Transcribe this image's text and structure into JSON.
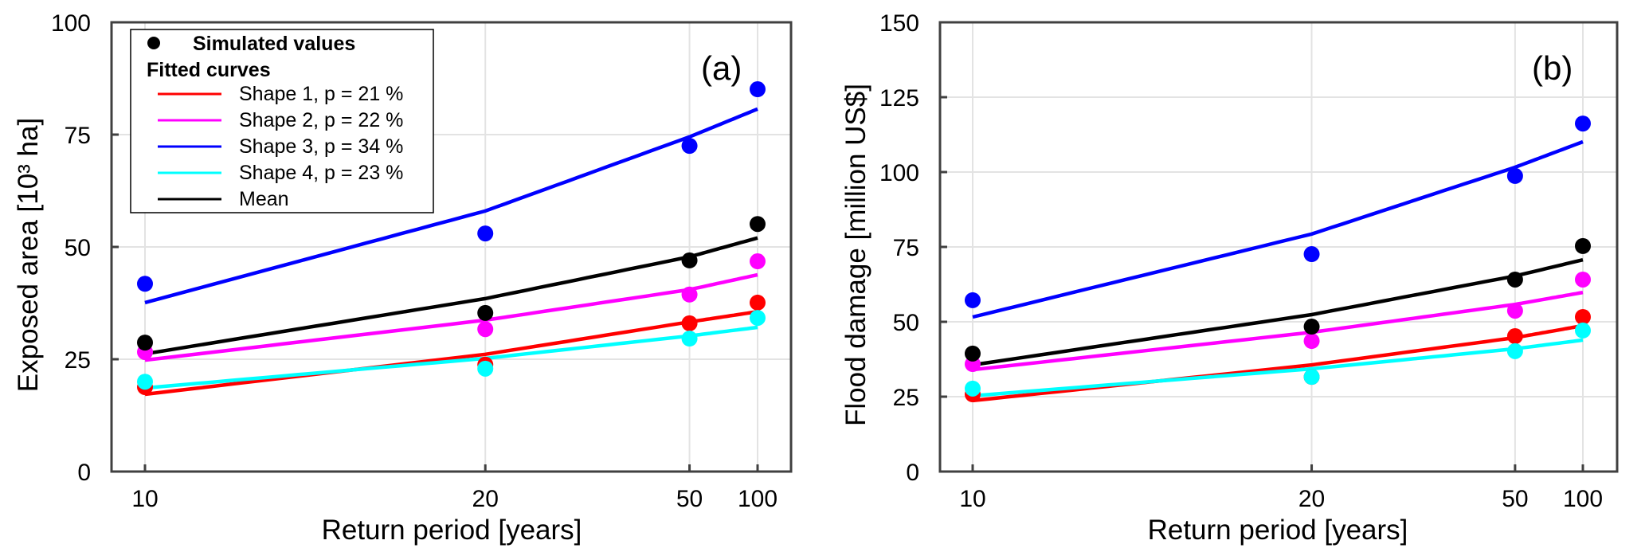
{
  "chart_data": [
    {
      "type": "line",
      "panel_label": "(a)",
      "xlabel": "Return period [years]",
      "ylabel": "Exposed  area [10³ ha]",
      "x_scale": "exceedance-probability (1/T, reversed)",
      "x": [
        10,
        20,
        50,
        100
      ],
      "x_tick_labels": [
        "10",
        "20",
        "50",
        "100"
      ],
      "ylim": [
        0,
        100
      ],
      "y_ticks": [
        0,
        25,
        50,
        75,
        100
      ],
      "y_tick_labels": [
        "0",
        "25",
        "50",
        "75",
        "100"
      ],
      "grid": true,
      "legend_position": "top-left",
      "series": [
        {
          "name": "Shape 1, p = 21 %",
          "color": "#ff0000",
          "points": [
            18.8,
            23.8,
            33.0,
            37.6
          ],
          "curve": [
            17.2,
            26.1,
            33.3,
            35.6
          ]
        },
        {
          "name": "Shape 2, p = 22 %",
          "color": "#ff00ff",
          "points": [
            26.6,
            31.7,
            39.4,
            46.8
          ],
          "curve": [
            24.8,
            33.7,
            40.5,
            43.8
          ]
        },
        {
          "name": "Shape 3, p = 34 %",
          "color": "#0000ff",
          "points": [
            41.8,
            53.0,
            72.5,
            85.1
          ],
          "curve": [
            37.6,
            58.0,
            74.5,
            80.7
          ]
        },
        {
          "name": "Shape 4, p = 23 %",
          "color": "#00ffff",
          "points": [
            20.0,
            22.9,
            29.6,
            34.2
          ],
          "curve": [
            18.6,
            25.2,
            30.2,
            32.1
          ]
        },
        {
          "name": "Mean",
          "color": "#000000",
          "points": [
            28.7,
            35.3,
            47.0,
            55.1
          ],
          "curve": [
            26.2,
            38.5,
            47.8,
            52.0
          ]
        }
      ]
    },
    {
      "type": "line",
      "panel_label": "(b)",
      "xlabel": "Return period [years]",
      "ylabel": "Flood damage [million US$]",
      "x_scale": "exceedance-probability (1/T, reversed)",
      "x": [
        10,
        20,
        50,
        100
      ],
      "x_tick_labels": [
        "10",
        "20",
        "50",
        "100"
      ],
      "ylim": [
        0,
        150
      ],
      "y_ticks": [
        0,
        25,
        50,
        75,
        100,
        125,
        150
      ],
      "y_tick_labels": [
        "0",
        "25",
        "50",
        "75",
        "100",
        "125",
        "150"
      ],
      "grid": true,
      "legend_position": "none",
      "series": [
        {
          "name": "Shape 1, p = 21 %",
          "color": "#ff0000",
          "points": [
            25.8,
            31.6,
            45.2,
            51.6
          ],
          "curve": [
            23.7,
            35.6,
            44.7,
            48.7
          ]
        },
        {
          "name": "Shape 2, p = 22 %",
          "color": "#ff00ff",
          "points": [
            35.9,
            43.6,
            53.7,
            64.1
          ],
          "curve": [
            34.0,
            46.5,
            55.8,
            59.8
          ]
        },
        {
          "name": "Shape 3, p = 34 %",
          "color": "#0000ff",
          "points": [
            57.2,
            72.6,
            98.7,
            116.2
          ],
          "curve": [
            51.6,
            79.3,
            101.6,
            110.1
          ]
        },
        {
          "name": "Shape 4, p = 23 %",
          "color": "#00ffff",
          "points": [
            27.7,
            31.6,
            40.2,
            47.1
          ],
          "curve": [
            25.3,
            34.3,
            41.0,
            43.9
          ]
        },
        {
          "name": "Mean",
          "color": "#000000",
          "points": [
            39.4,
            48.4,
            64.1,
            75.3
          ],
          "curve": [
            35.6,
            52.4,
            65.3,
            70.7
          ]
        }
      ]
    }
  ],
  "legend": {
    "simulated_label": "Simulated values",
    "fitted_header": "Fitted curves",
    "entries": [
      {
        "label": "Shape 1, p = 21 %",
        "color": "#ff0000"
      },
      {
        "label": "Shape 2, p = 22 %",
        "color": "#ff00ff"
      },
      {
        "label": "Shape 3, p = 34 %",
        "color": "#0000ff"
      },
      {
        "label": "Shape 4, p = 23 %",
        "color": "#00ffff"
      },
      {
        "label": "Mean",
        "color": "#000000"
      }
    ]
  }
}
